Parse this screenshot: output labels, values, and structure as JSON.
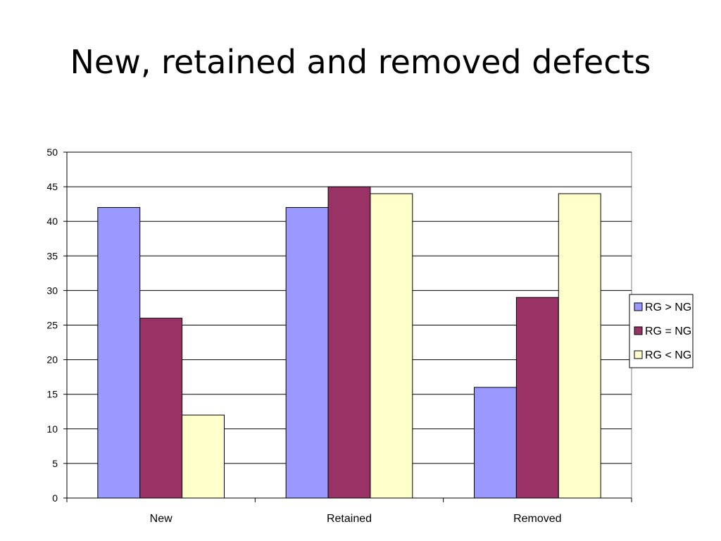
{
  "slide": {
    "title": "New, retained and removed defects"
  },
  "chart_data": {
    "type": "bar",
    "title": "",
    "xlabel": "",
    "ylabel": "",
    "categories": [
      "New",
      "Retained",
      "Removed"
    ],
    "series": [
      {
        "name": "RG > NG",
        "values": [
          42,
          42,
          16
        ],
        "color": "#9999ff"
      },
      {
        "name": "RG = NG",
        "values": [
          26,
          45,
          29
        ],
        "color": "#993366"
      },
      {
        "name": "RG < NG",
        "values": [
          12,
          44,
          44
        ],
        "color": "#ffffcc"
      }
    ],
    "ylim": [
      0,
      50
    ],
    "yticks": [
      0,
      5,
      10,
      15,
      20,
      25,
      30,
      35,
      40,
      45,
      50
    ],
    "grid": true,
    "legend_position": "right"
  }
}
